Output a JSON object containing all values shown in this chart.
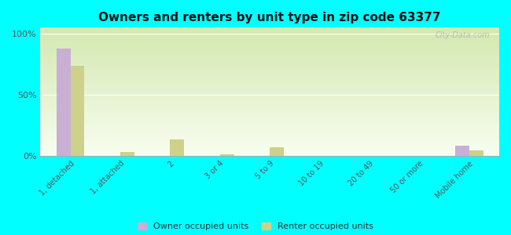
{
  "title": "Owners and renters by unit type in zip code 63377",
  "categories": [
    "1, detached",
    "1, attached",
    "2",
    "3 or 4",
    "5 to 9",
    "10 to 19",
    "20 to 49",
    "50 or more",
    "Mobile home"
  ],
  "owner_values": [
    88,
    0,
    0,
    0,
    0,
    0,
    0,
    0,
    8
  ],
  "renter_values": [
    74,
    3,
    13,
    1,
    7,
    0,
    0,
    0,
    4
  ],
  "owner_color": "#c9afd4",
  "renter_color": "#cdd18a",
  "background_color": "#00ffff",
  "gradient_top": "#d4e8b0",
  "gradient_bottom": "#f8fef0",
  "ylabel_ticks": [
    0,
    50,
    100
  ],
  "ylabel_labels": [
    "0%",
    "50%",
    "100%"
  ],
  "ylim": [
    0,
    105
  ],
  "bar_width": 0.28,
  "legend_owner": "Owner occupied units",
  "legend_renter": "Renter occupied units",
  "watermark": "City-Data.com"
}
